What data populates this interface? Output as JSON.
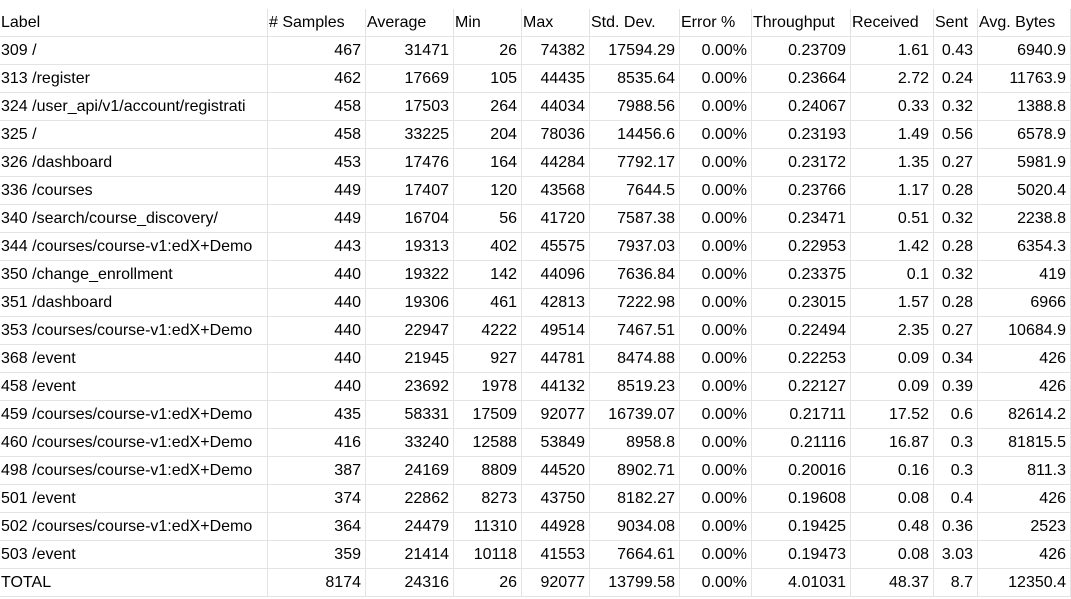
{
  "headers": [
    "Label",
    "# Samples",
    "Average",
    "Min",
    "Max",
    "Std. Dev.",
    "Error %",
    "Throughput",
    "Received",
    "Sent",
    "Avg. Bytes"
  ],
  "rows": [
    [
      "309 /",
      "467",
      "31471",
      "26",
      "74382",
      "17594.29",
      "0.00%",
      "0.23709",
      "1.61",
      "0.43",
      "6940.9"
    ],
    [
      "313 /register",
      "462",
      "17669",
      "105",
      "44435",
      "8535.64",
      "0.00%",
      "0.23664",
      "2.72",
      "0.24",
      "11763.9"
    ],
    [
      "324 /user_api/v1/account/registrati",
      "458",
      "17503",
      "264",
      "44034",
      "7988.56",
      "0.00%",
      "0.24067",
      "0.33",
      "0.32",
      "1388.8"
    ],
    [
      "325 /",
      "458",
      "33225",
      "204",
      "78036",
      "14456.6",
      "0.00%",
      "0.23193",
      "1.49",
      "0.56",
      "6578.9"
    ],
    [
      "326 /dashboard",
      "453",
      "17476",
      "164",
      "44284",
      "7792.17",
      "0.00%",
      "0.23172",
      "1.35",
      "0.27",
      "5981.9"
    ],
    [
      "336 /courses",
      "449",
      "17407",
      "120",
      "43568",
      "7644.5",
      "0.00%",
      "0.23766",
      "1.17",
      "0.28",
      "5020.4"
    ],
    [
      "340 /search/course_discovery/",
      "449",
      "16704",
      "56",
      "41720",
      "7587.38",
      "0.00%",
      "0.23471",
      "0.51",
      "0.32",
      "2238.8"
    ],
    [
      "344 /courses/course-v1:edX+Demo",
      "443",
      "19313",
      "402",
      "45575",
      "7937.03",
      "0.00%",
      "0.22953",
      "1.42",
      "0.28",
      "6354.3"
    ],
    [
      "350 /change_enrollment",
      "440",
      "19322",
      "142",
      "44096",
      "7636.84",
      "0.00%",
      "0.23375",
      "0.1",
      "0.32",
      "419"
    ],
    [
      "351 /dashboard",
      "440",
      "19306",
      "461",
      "42813",
      "7222.98",
      "0.00%",
      "0.23015",
      "1.57",
      "0.28",
      "6966"
    ],
    [
      "353 /courses/course-v1:edX+Demo",
      "440",
      "22947",
      "4222",
      "49514",
      "7467.51",
      "0.00%",
      "0.22494",
      "2.35",
      "0.27",
      "10684.9"
    ],
    [
      "368 /event",
      "440",
      "21945",
      "927",
      "44781",
      "8474.88",
      "0.00%",
      "0.22253",
      "0.09",
      "0.34",
      "426"
    ],
    [
      "458 /event",
      "440",
      "23692",
      "1978",
      "44132",
      "8519.23",
      "0.00%",
      "0.22127",
      "0.09",
      "0.39",
      "426"
    ],
    [
      "459 /courses/course-v1:edX+Demo",
      "435",
      "58331",
      "17509",
      "92077",
      "16739.07",
      "0.00%",
      "0.21711",
      "17.52",
      "0.6",
      "82614.2"
    ],
    [
      "460 /courses/course-v1:edX+Demo",
      "416",
      "33240",
      "12588",
      "53849",
      "8958.8",
      "0.00%",
      "0.21116",
      "16.87",
      "0.3",
      "81815.5"
    ],
    [
      "498 /courses/course-v1:edX+Demo",
      "387",
      "24169",
      "8809",
      "44520",
      "8902.71",
      "0.00%",
      "0.20016",
      "0.16",
      "0.3",
      "811.3"
    ],
    [
      "501 /event",
      "374",
      "22862",
      "8273",
      "43750",
      "8182.27",
      "0.00%",
      "0.19608",
      "0.08",
      "0.4",
      "426"
    ],
    [
      "502 /courses/course-v1:edX+Demo",
      "364",
      "24479",
      "11310",
      "44928",
      "9034.08",
      "0.00%",
      "0.19425",
      "0.48",
      "0.36",
      "2523"
    ],
    [
      "503 /event",
      "359",
      "21414",
      "10118",
      "41553",
      "7664.61",
      "0.00%",
      "0.19473",
      "0.08",
      "3.03",
      "426"
    ],
    [
      "TOTAL",
      "8174",
      "24316",
      "26",
      "92077",
      "13799.58",
      "0.00%",
      "4.01031",
      "48.37",
      "8.7",
      "12350.4"
    ]
  ]
}
